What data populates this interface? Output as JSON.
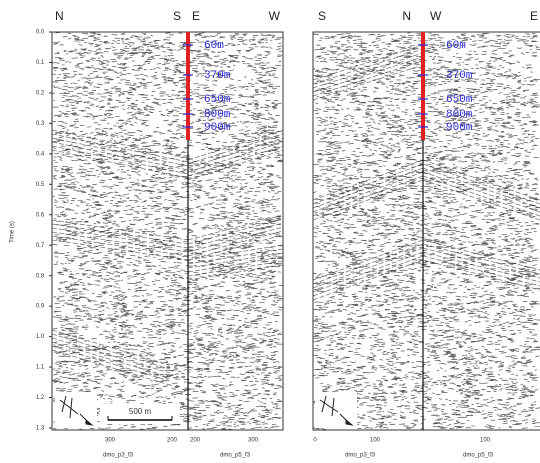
{
  "panels": [
    {
      "top_labels": [
        "N",
        "S",
        "E",
        "W"
      ],
      "depths": [
        "60m",
        "370m",
        "650m",
        "800m",
        "900m"
      ],
      "x_ticks": [
        "300",
        "200",
        "200",
        "300"
      ],
      "line_names": [
        "dmo_p3_f3",
        "dmo_p5_f3"
      ],
      "scale_bar": "500 m"
    },
    {
      "top_labels": [
        "S",
        "N",
        "W",
        "E"
      ],
      "depths": [
        "60m",
        "370m",
        "650m",
        "800m",
        "900m"
      ],
      "x_ticks": [
        "0",
        "100",
        "100"
      ],
      "line_names": [
        "dmo_p3_f3",
        "dmo_p5_f3"
      ]
    }
  ],
  "y_axis": {
    "label": "Time (s)",
    "ticks": [
      "0.0",
      "0.1",
      "0.2",
      "0.3",
      "0.4",
      "0.5",
      "0.6",
      "0.7",
      "0.8",
      "0.9",
      "1.0",
      "1.1",
      "1.2",
      "1.3"
    ]
  }
}
